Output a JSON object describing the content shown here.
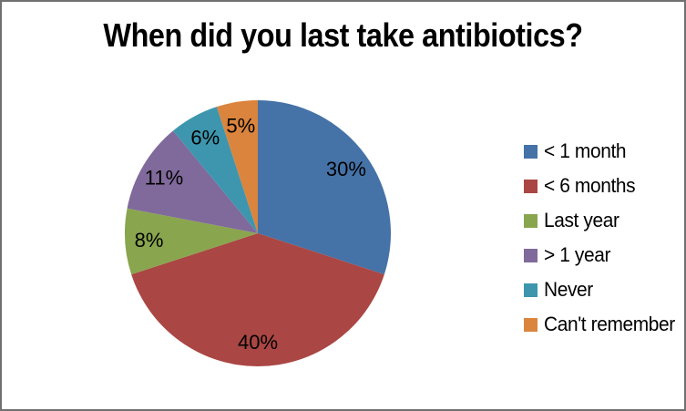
{
  "frame": {
    "background": "#ffffff",
    "border_color": "#707070"
  },
  "chart_data": {
    "type": "pie",
    "title": "When did you last take antibiotics?",
    "title_color": "#000000",
    "categories": [
      "< 1 month",
      "< 6 months",
      "Last year",
      "> 1 year",
      "Never",
      "Can't remember"
    ],
    "values": [
      30,
      40,
      8,
      11,
      6,
      5
    ],
    "data_labels": [
      "30%",
      "40%",
      "8%",
      "11%",
      "6%",
      "5%"
    ],
    "colors": [
      "#4572A7",
      "#AA4643",
      "#89A54E",
      "#80699B",
      "#3D96AE",
      "#DB843D"
    ],
    "unit": "%",
    "direction": "clockwise",
    "start_angle_deg": 0,
    "label_position": "inside",
    "label_color": "#000000",
    "legend_position": "right"
  }
}
